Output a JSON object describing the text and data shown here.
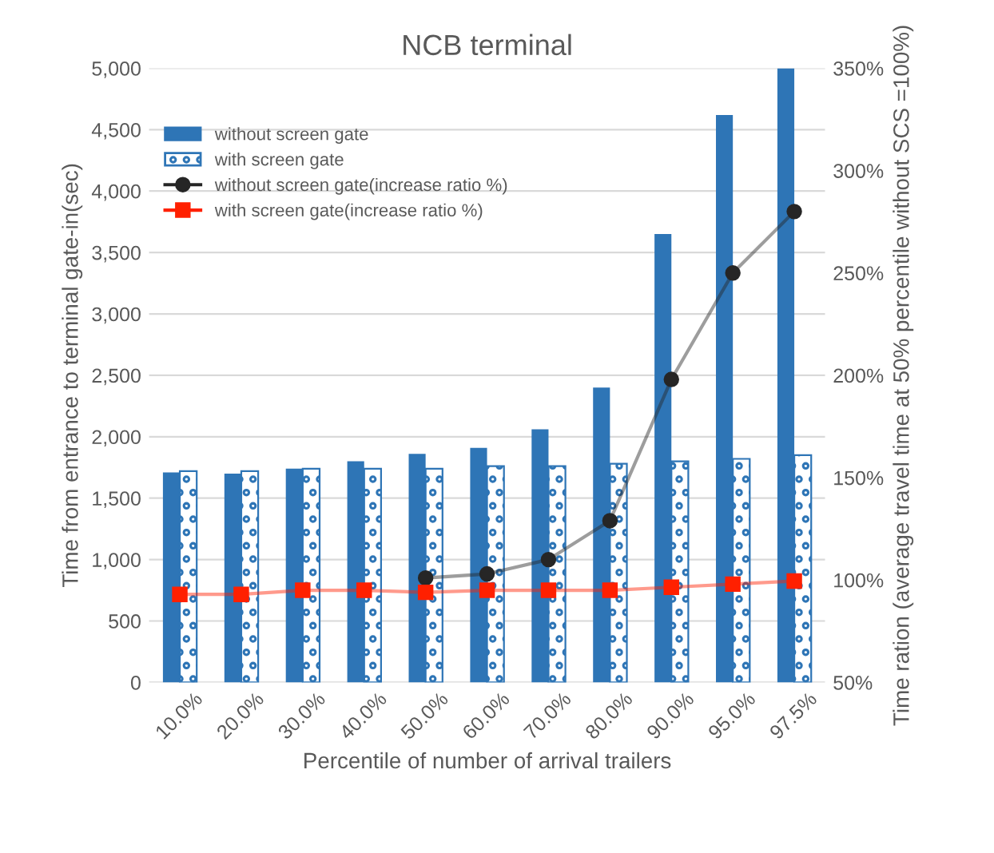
{
  "chart_data": {
    "type": "bar",
    "title": "NCB terminal",
    "xlabel": "Percentile of number of arrival trailers",
    "ylabel": "Time from entrance to terminal gate-in(sec)",
    "y2label": "Time ration (average travel time at 50% percentile without SCS =100%)",
    "categories": [
      "10.0%",
      "20.0%",
      "30.0%",
      "40.0%",
      "50.0%",
      "60.0%",
      "70.0%",
      "80.0%",
      "90.0%",
      "95.0%",
      "97.5%"
    ],
    "series": [
      {
        "name": "without screen gate",
        "color": "#2e75b6",
        "values": [
          1710,
          1700,
          1740,
          1800,
          1860,
          1910,
          2060,
          2400,
          3650,
          4620,
          5000
        ]
      },
      {
        "name": "with screen gate",
        "color": "#2e75b6",
        "values": [
          1720,
          1720,
          1740,
          1740,
          1740,
          1760,
          1760,
          1780,
          1800,
          1820,
          1850
        ]
      },
      {
        "name": "without screen gate(increase ratio %)",
        "type": "line",
        "axis": "y2",
        "color": "#262626",
        "marker": "circle",
        "values": [
          null,
          null,
          null,
          null,
          101,
          103,
          110,
          129,
          198,
          250,
          280
        ]
      },
      {
        "name": "with screen gate(increase ratio %)",
        "type": "line",
        "axis": "y2",
        "color": "#ff2000",
        "marker": "square",
        "values": [
          93,
          93,
          95,
          95,
          94,
          95,
          95,
          95,
          96.5,
          98,
          99.5
        ]
      }
    ],
    "ylim": [
      0,
      5000
    ],
    "yticks": [
      {
        "value": 0,
        "label": "0"
      },
      {
        "value": 500,
        "label": "500"
      },
      {
        "value": 1000,
        "label": "1,000"
      },
      {
        "value": 1500,
        "label": "1,500"
      },
      {
        "value": 2000,
        "label": "2,000"
      },
      {
        "value": 2500,
        "label": "2,500"
      },
      {
        "value": 3000,
        "label": "3,000"
      },
      {
        "value": 3500,
        "label": "3,500"
      },
      {
        "value": 4000,
        "label": "4,000"
      },
      {
        "value": 4500,
        "label": "4,500"
      },
      {
        "value": 5000,
        "label": "5,000"
      }
    ],
    "y2lim": [
      50,
      350
    ],
    "y2ticks": [
      {
        "value": 50,
        "label": "50%"
      },
      {
        "value": 100,
        "label": "100%"
      },
      {
        "value": 150,
        "label": "150%"
      },
      {
        "value": 200,
        "label": "200%"
      },
      {
        "value": 250,
        "label": "250%"
      },
      {
        "value": 300,
        "label": "300%"
      },
      {
        "value": 350,
        "label": "350%"
      }
    ],
    "grid": "y",
    "legend": "top left"
  }
}
